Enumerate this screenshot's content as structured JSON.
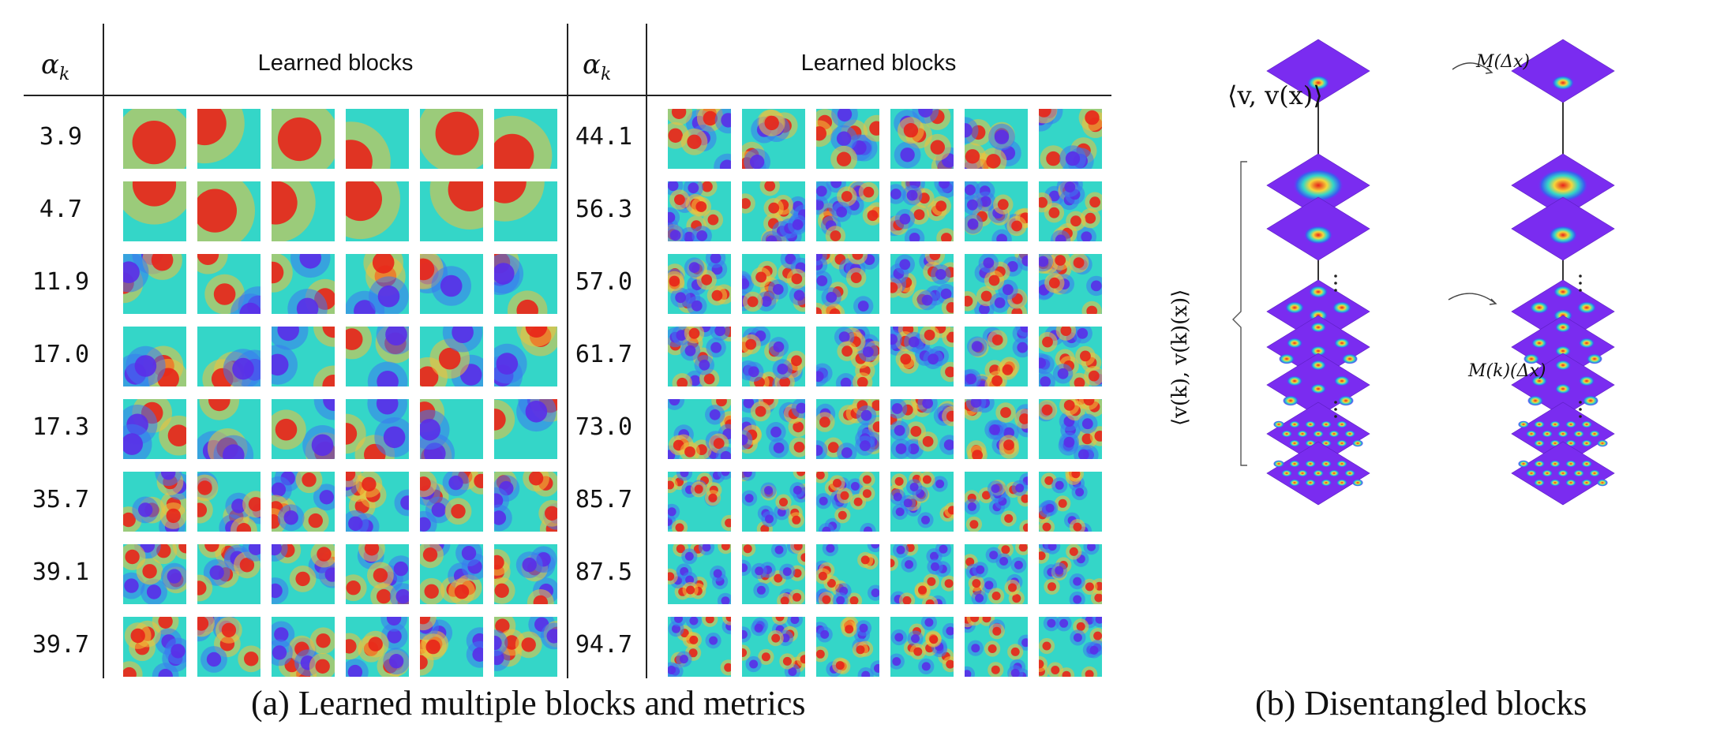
{
  "panel_a": {
    "header_alpha": "α",
    "header_alpha_sub": "k",
    "header_blocks": "Learned blocks",
    "left_alphas": [
      "3.9",
      "4.7",
      "11.9",
      "17.0",
      "17.3",
      "35.7",
      "39.1",
      "39.7"
    ],
    "right_alphas": [
      "44.1",
      "56.3",
      "57.0",
      "61.7",
      "73.0",
      "85.7",
      "87.5",
      "94.7"
    ],
    "caption": "(a) Learned multiple blocks and metrics"
  },
  "panel_b": {
    "top_label": "⟨v, v(x)⟩",
    "arrow_top_label": "M(Δx)",
    "arrow_mid_label": "M(k)(Δx)",
    "side_label": "⟨v(k), v(k)(x)⟩",
    "caption": "(b) Disentangled blocks"
  },
  "colors": {
    "jet_low": "#6a1fd6",
    "jet_mid": "#34d6c8",
    "jet_high": "#e8231a",
    "plane_base": "#7a2cf0",
    "rule": "#222222"
  }
}
